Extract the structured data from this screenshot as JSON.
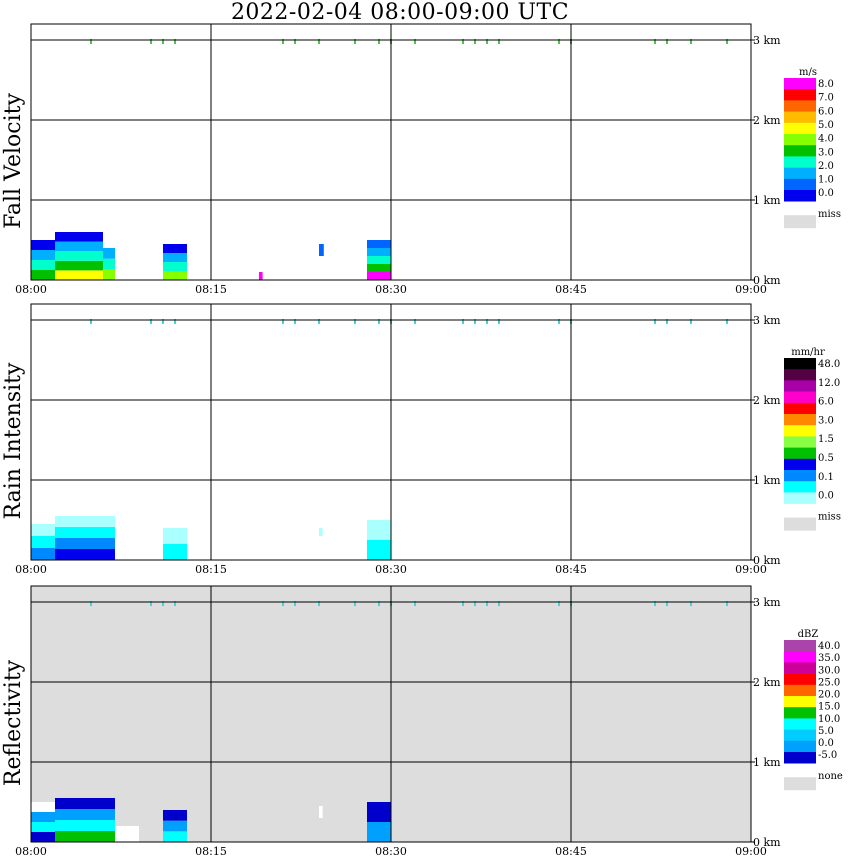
{
  "title": "2022-02-04   08:00-09:00 UTC",
  "time_ticks": [
    "08:00",
    "08:15",
    "08:30",
    "08:45",
    "09:00"
  ],
  "height_ticks": [
    "0 km",
    "1 km",
    "2 km",
    "3 km"
  ],
  "chart_data": [
    {
      "type": "heatmap",
      "title": "Fall Velocity",
      "xlim": [
        "08:00",
        "09:00"
      ],
      "ylim_km": [
        0,
        3.2
      ],
      "background": "white",
      "colorbar": {
        "unit": "m/s",
        "labels": [
          "8.0",
          "7.0",
          "6.0",
          "5.0",
          "4.0",
          "3.0",
          "2.0",
          "1.0",
          "0.0"
        ],
        "colors": [
          "#ff00ff",
          "#ff0000",
          "#ff6600",
          "#ffbb00",
          "#ffff00",
          "#88ff00",
          "#00c000",
          "#00ffcc",
          "#00b0ff",
          "#0066ff",
          "#0000ee"
        ],
        "missing_label": "miss",
        "missing_color": "#dddddd"
      },
      "echoes": [
        {
          "t0": "08:00",
          "t1": "08:02",
          "h0": 0.0,
          "h1": 0.5,
          "colors": [
            "#0000ee",
            "#00b0ff",
            "#00ffcc",
            "#00c000"
          ]
        },
        {
          "t0": "08:02",
          "t1": "08:06",
          "h0": 0.0,
          "h1": 0.6,
          "colors": [
            "#0000ee",
            "#00b0ff",
            "#00ffcc",
            "#00c000",
            "#ffff00"
          ]
        },
        {
          "t0": "08:06",
          "t1": "08:07",
          "h0": 0.0,
          "h1": 0.4,
          "colors": [
            "#00b0ff",
            "#00ffcc",
            "#88ff00"
          ]
        },
        {
          "t0": "08:11",
          "t1": "08:13",
          "h0": 0.0,
          "h1": 0.45,
          "colors": [
            "#0000ee",
            "#00b0ff",
            "#00ffcc",
            "#88ff00"
          ]
        },
        {
          "t0": "08:19",
          "t1": "08:19.3",
          "h0": 0.0,
          "h1": 0.1,
          "colors": [
            "#ff00ff"
          ]
        },
        {
          "t0": "08:24",
          "t1": "08:24.4",
          "h0": 0.3,
          "h1": 0.45,
          "colors": [
            "#0066ff"
          ]
        },
        {
          "t0": "08:28",
          "t1": "08:30",
          "h0": 0.0,
          "h1": 0.5,
          "colors": [
            "#0066ff",
            "#00b0ff",
            "#00ffcc",
            "#00c000",
            "#ff00ff"
          ]
        }
      ],
      "cloud_top_marks": [
        "08:05",
        "08:10",
        "08:11",
        "08:12",
        "08:21",
        "08:22",
        "08:24",
        "08:27",
        "08:29",
        "08:30",
        "08:32",
        "08:36",
        "08:37",
        "08:38",
        "08:39",
        "08:44",
        "08:45",
        "08:52",
        "08:53",
        "08:55",
        "08:58"
      ]
    },
    {
      "type": "heatmap",
      "title": "Rain Intensity",
      "xlim": [
        "08:00",
        "09:00"
      ],
      "ylim_km": [
        0,
        3.2
      ],
      "background": "white",
      "colorbar": {
        "unit": "mm/hr",
        "labels": [
          "48.0",
          "12.0",
          "6.0",
          "3.0",
          "1.5",
          "0.5",
          "0.1",
          "0.0"
        ],
        "colors": [
          "#000000",
          "#550044",
          "#aa00aa",
          "#ff00cc",
          "#ff0000",
          "#ff8800",
          "#ffff00",
          "#88ff44",
          "#00c000",
          "#0000ee",
          "#0088ff",
          "#00ffff",
          "#aaffff"
        ],
        "missing_label": "miss",
        "missing_color": "#dddddd"
      },
      "echoes": [
        {
          "t0": "08:00",
          "t1": "08:02",
          "h0": 0.0,
          "h1": 0.45,
          "colors": [
            "#aaffff",
            "#00ffff",
            "#0088ff"
          ]
        },
        {
          "t0": "08:02",
          "t1": "08:07",
          "h0": 0.0,
          "h1": 0.55,
          "colors": [
            "#aaffff",
            "#00ffff",
            "#0088ff",
            "#0000ee"
          ]
        },
        {
          "t0": "08:11",
          "t1": "08:13",
          "h0": 0.0,
          "h1": 0.4,
          "colors": [
            "#aaffff",
            "#00ffff"
          ]
        },
        {
          "t0": "08:24",
          "t1": "08:24.3",
          "h0": 0.3,
          "h1": 0.4,
          "colors": [
            "#aaffff"
          ]
        },
        {
          "t0": "08:28",
          "t1": "08:30",
          "h0": 0.0,
          "h1": 0.5,
          "colors": [
            "#aaffff",
            "#00ffff"
          ]
        }
      ],
      "cloud_top_marks": [
        "08:05",
        "08:10",
        "08:11",
        "08:12",
        "08:21",
        "08:22",
        "08:24",
        "08:27",
        "08:29",
        "08:30",
        "08:32",
        "08:36",
        "08:37",
        "08:38",
        "08:39",
        "08:44",
        "08:45",
        "08:52",
        "08:53",
        "08:55",
        "08:58"
      ]
    },
    {
      "type": "heatmap",
      "title": "Reflectivity",
      "xlim": [
        "08:00",
        "09:00"
      ],
      "ylim_km": [
        0,
        3.2
      ],
      "background": "#dddddd",
      "colorbar": {
        "unit": "dBZ",
        "labels": [
          "40.0",
          "35.0",
          "30.0",
          "25.0",
          "20.0",
          "15.0",
          "10.0",
          "5.0",
          "0.0",
          "-5.0"
        ],
        "colors": [
          "#aa44aa",
          "#ff00ff",
          "#cc0099",
          "#ff0000",
          "#ff6600",
          "#ffff00",
          "#00c000",
          "#00ffff",
          "#00ccff",
          "#00a0ff",
          "#0000cc"
        ],
        "missing_label": "none",
        "missing_color": "#dddddd"
      },
      "echoes": [
        {
          "t0": "08:00",
          "t1": "08:02",
          "h0": 0.0,
          "h1": 0.5,
          "colors": [
            "#ffffff",
            "#00a0ff",
            "#00ffff",
            "#0000cc"
          ]
        },
        {
          "t0": "08:02",
          "t1": "08:07",
          "h0": 0.0,
          "h1": 0.55,
          "colors": [
            "#0000cc",
            "#00a0ff",
            "#00ffff",
            "#00c000"
          ]
        },
        {
          "t0": "08:07",
          "t1": "08:09",
          "h0": 0.0,
          "h1": 0.2,
          "colors": [
            "#ffffff"
          ]
        },
        {
          "t0": "08:11",
          "t1": "08:13",
          "h0": 0.0,
          "h1": 0.4,
          "colors": [
            "#0000cc",
            "#00a0ff",
            "#00ffff"
          ]
        },
        {
          "t0": "08:24",
          "t1": "08:24.3",
          "h0": 0.3,
          "h1": 0.45,
          "colors": [
            "#ffffff"
          ]
        },
        {
          "t0": "08:28",
          "t1": "08:30",
          "h0": 0.0,
          "h1": 0.5,
          "colors": [
            "#0000cc",
            "#00a0ff"
          ]
        }
      ],
      "cloud_top_marks": [
        "08:05",
        "08:10",
        "08:11",
        "08:12",
        "08:21",
        "08:22",
        "08:24",
        "08:27",
        "08:29",
        "08:30",
        "08:32",
        "08:36",
        "08:37",
        "08:38",
        "08:39",
        "08:44",
        "08:45",
        "08:52",
        "08:53",
        "08:55",
        "08:58"
      ]
    }
  ]
}
